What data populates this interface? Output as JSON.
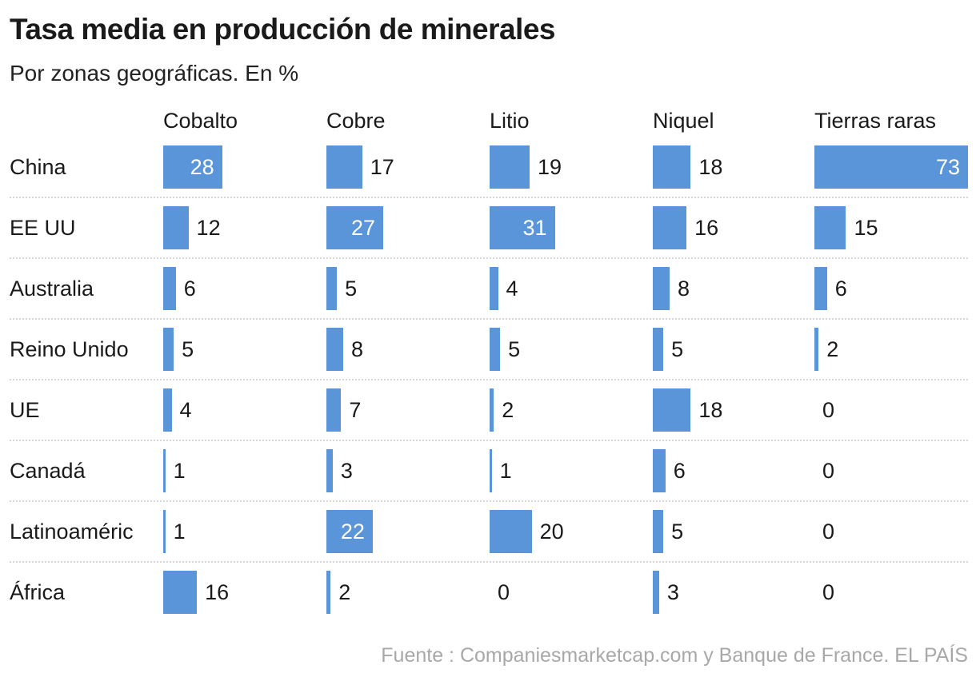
{
  "chart_data": {
    "type": "bar",
    "title": "Tasa media en producción de minerales",
    "subtitle": "Por zonas geográficas. En %",
    "columns": [
      "Cobalto",
      "Cobre",
      "Litio",
      "Niquel",
      "Tierras raras"
    ],
    "categories": [
      "China",
      "EE UU",
      "Australia",
      "Reino Unido",
      "UE",
      "Canadá",
      "Latinoaméric",
      "África"
    ],
    "values": [
      [
        28,
        17,
        19,
        18,
        73
      ],
      [
        12,
        27,
        31,
        16,
        15
      ],
      [
        6,
        5,
        4,
        8,
        6
      ],
      [
        5,
        8,
        5,
        5,
        2
      ],
      [
        4,
        7,
        2,
        18,
        0
      ],
      [
        1,
        3,
        1,
        6,
        0
      ],
      [
        1,
        22,
        20,
        5,
        0
      ],
      [
        16,
        2,
        0,
        3,
        0
      ]
    ],
    "bar_color": "#5b95d9",
    "source": "Fuente : Companiesmarketcap.com y Banque de France. EL PAÍS"
  }
}
